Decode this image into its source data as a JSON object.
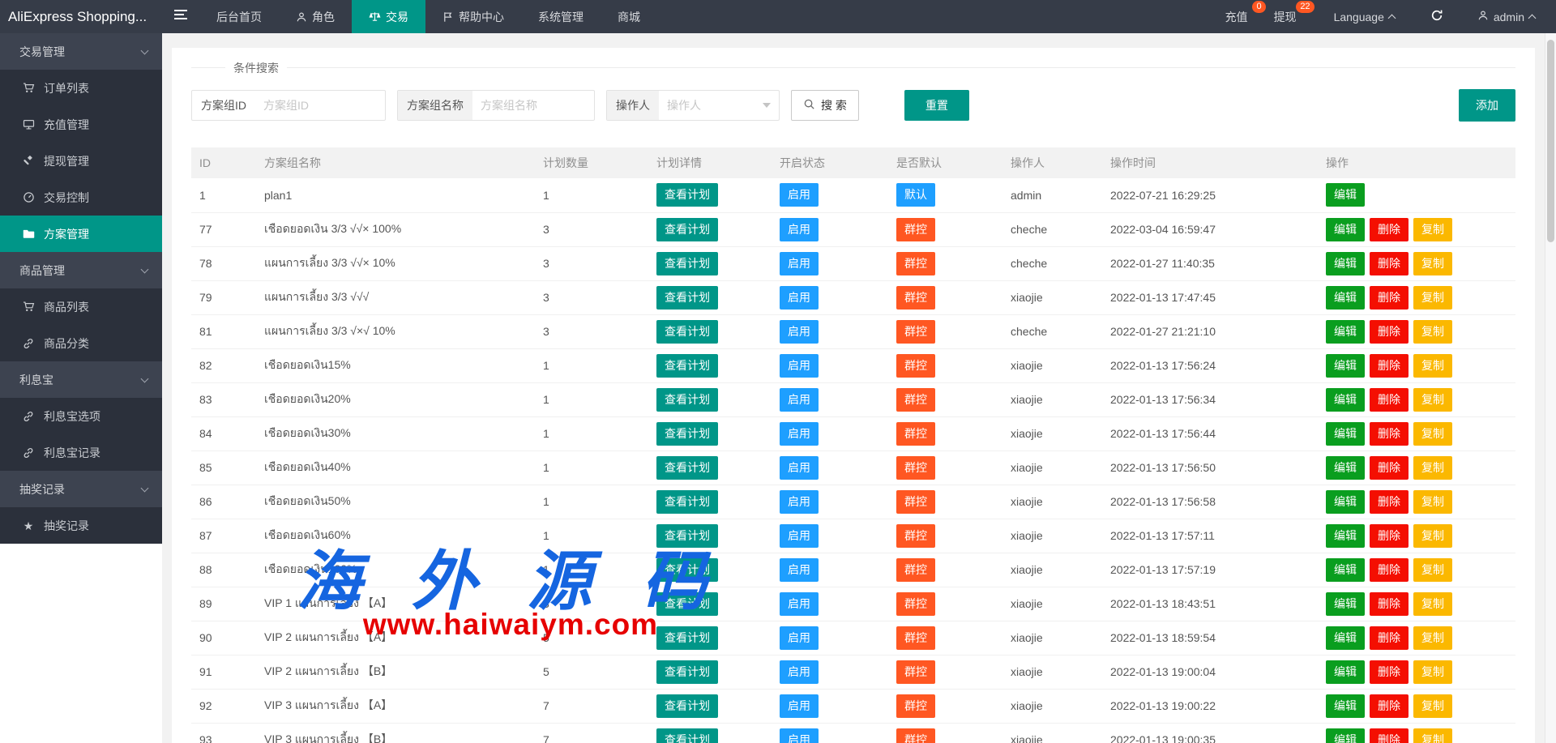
{
  "navbar": {
    "logo": "AliExpress Shopping...",
    "items": [
      {
        "key": "home",
        "label": "后台首页",
        "icon": null,
        "active": false
      },
      {
        "key": "role",
        "label": "角色",
        "icon": "person-icon",
        "active": false
      },
      {
        "key": "trade",
        "label": "交易",
        "icon": "scales-icon",
        "active": true
      },
      {
        "key": "help-center",
        "label": "帮助中心",
        "icon": "flag-icon",
        "active": false
      },
      {
        "key": "system-mgmt",
        "label": "系统管理",
        "icon": null,
        "active": false
      },
      {
        "key": "mall",
        "label": "商城",
        "icon": null,
        "active": false
      }
    ],
    "right": {
      "recharge": {
        "label": "充值",
        "badge": "0"
      },
      "withdraw": {
        "label": "提现",
        "badge": "22"
      },
      "language": {
        "label": "Language"
      },
      "user": {
        "label": "admin"
      }
    }
  },
  "sidebar": {
    "items": [
      {
        "type": "section",
        "key": "trade-mgmt",
        "label": "交易管理"
      },
      {
        "type": "item",
        "key": "order-list",
        "label": "订单列表",
        "icon": "cart-icon",
        "active": false
      },
      {
        "type": "item",
        "key": "recharge-mgmt",
        "label": "充值管理",
        "icon": "recharge-icon",
        "active": false
      },
      {
        "type": "item",
        "key": "withdraw-mgmt",
        "label": "提现管理",
        "icon": "gavel-icon",
        "active": false
      },
      {
        "type": "item",
        "key": "trade-control",
        "label": "交易控制",
        "icon": "gauge-icon",
        "active": false
      },
      {
        "type": "item",
        "key": "plan-mgmt",
        "label": "方案管理",
        "icon": "folder-icon",
        "active": true
      },
      {
        "type": "section",
        "key": "goods-mgmt",
        "label": "商品管理"
      },
      {
        "type": "item",
        "key": "goods-list",
        "label": "商品列表",
        "icon": "cart-icon",
        "active": false
      },
      {
        "type": "item",
        "key": "goods-category",
        "label": "商品分类",
        "icon": "link-icon",
        "active": false
      },
      {
        "type": "section",
        "key": "interest-bao",
        "label": "利息宝"
      },
      {
        "type": "item",
        "key": "interest-bao-options",
        "label": "利息宝选项",
        "icon": "link-icon",
        "active": false
      },
      {
        "type": "item",
        "key": "interest-bao-records",
        "label": "利息宝记录",
        "icon": "link-icon",
        "active": false
      },
      {
        "type": "section",
        "key": "lottery-records-group",
        "label": "抽奖记录"
      },
      {
        "type": "item",
        "key": "lottery-records",
        "label": "抽奖记录",
        "icon": "star-icon",
        "active": false
      }
    ]
  },
  "search_panel": {
    "legend": "条件搜索",
    "fields": [
      {
        "label": "方案组ID",
        "placeholder": "方案组ID"
      },
      {
        "label": "方案组名称",
        "placeholder": "方案组名称"
      },
      {
        "label": "操作人",
        "placeholder": "操作人"
      }
    ],
    "search_button": "搜 索",
    "reset_button": "重置",
    "add_button": "添加"
  },
  "table": {
    "columns": [
      "ID",
      "方案组名称",
      "计划数量",
      "计划详情",
      "开启状态",
      "是否默认",
      "操作人",
      "操作时间",
      "操作"
    ],
    "labels": {
      "view": "查看计划",
      "enable": "启用",
      "default": "默认",
      "group": "群控",
      "edit": "编辑",
      "delete": "删除",
      "copy": "复制"
    },
    "rows": [
      {
        "id": "1",
        "name": "plan1",
        "count": "1",
        "status": "enable",
        "default": "default",
        "operator": "admin",
        "time": "2022-07-21 16:29:25",
        "actions": [
          "edit"
        ]
      },
      {
        "id": "77",
        "name": "เชือดยอดเงิน 3/3 √√× 100%",
        "count": "3",
        "status": "enable",
        "default": "group",
        "operator": "cheche",
        "time": "2022-03-04 16:59:47",
        "actions": [
          "edit",
          "delete",
          "copy"
        ]
      },
      {
        "id": "78",
        "name": "แผนการเลี้ยง 3/3 √√× 10%",
        "count": "3",
        "status": "enable",
        "default": "group",
        "operator": "cheche",
        "time": "2022-01-27 11:40:35",
        "actions": [
          "edit",
          "delete",
          "copy"
        ]
      },
      {
        "id": "79",
        "name": "แผนการเลี้ยง 3/3 √√√",
        "count": "3",
        "status": "enable",
        "default": "group",
        "operator": "xiaojie",
        "time": "2022-01-13 17:47:45",
        "actions": [
          "edit",
          "delete",
          "copy"
        ]
      },
      {
        "id": "81",
        "name": "แผนการเลี้ยง 3/3 √×√ 10%",
        "count": "3",
        "status": "enable",
        "default": "group",
        "operator": "cheche",
        "time": "2022-01-27 21:21:10",
        "actions": [
          "edit",
          "delete",
          "copy"
        ]
      },
      {
        "id": "82",
        "name": "เชือดยอดเงิน15%",
        "count": "1",
        "status": "enable",
        "default": "group",
        "operator": "xiaojie",
        "time": "2022-01-13 17:56:24",
        "actions": [
          "edit",
          "delete",
          "copy"
        ]
      },
      {
        "id": "83",
        "name": "เชือดยอดเงิน20%",
        "count": "1",
        "status": "enable",
        "default": "group",
        "operator": "xiaojie",
        "time": "2022-01-13 17:56:34",
        "actions": [
          "edit",
          "delete",
          "copy"
        ]
      },
      {
        "id": "84",
        "name": "เชือดยอดเงิน30%",
        "count": "1",
        "status": "enable",
        "default": "group",
        "operator": "xiaojie",
        "time": "2022-01-13 17:56:44",
        "actions": [
          "edit",
          "delete",
          "copy"
        ]
      },
      {
        "id": "85",
        "name": "เชือดยอดเงิน40%",
        "count": "1",
        "status": "enable",
        "default": "group",
        "operator": "xiaojie",
        "time": "2022-01-13 17:56:50",
        "actions": [
          "edit",
          "delete",
          "copy"
        ]
      },
      {
        "id": "86",
        "name": "เชือดยอดเงิน50%",
        "count": "1",
        "status": "enable",
        "default": "group",
        "operator": "xiaojie",
        "time": "2022-01-13 17:56:58",
        "actions": [
          "edit",
          "delete",
          "copy"
        ]
      },
      {
        "id": "87",
        "name": "เชือดยอดเงิน60%",
        "count": "1",
        "status": "enable",
        "default": "group",
        "operator": "xiaojie",
        "time": "2022-01-13 17:57:11",
        "actions": [
          "edit",
          "delete",
          "copy"
        ]
      },
      {
        "id": "88",
        "name": "เชือดยอดเงิน100%",
        "count": "1",
        "status": "enable",
        "default": "group",
        "operator": "xiaojie",
        "time": "2022-01-13 17:57:19",
        "actions": [
          "edit",
          "delete",
          "copy"
        ]
      },
      {
        "id": "89",
        "name": "VIP 1 แผนการเลี้ยง 【A】",
        "count": "3",
        "status": "enable",
        "default": "group",
        "operator": "xiaojie",
        "time": "2022-01-13 18:43:51",
        "actions": [
          "edit",
          "delete",
          "copy"
        ]
      },
      {
        "id": "90",
        "name": "VIP 2 แผนการเลี้ยง 【A】",
        "count": "5",
        "status": "enable",
        "default": "group",
        "operator": "xiaojie",
        "time": "2022-01-13 18:59:54",
        "actions": [
          "edit",
          "delete",
          "copy"
        ]
      },
      {
        "id": "91",
        "name": "VIP 2 แผนการเลี้ยง 【B】",
        "count": "5",
        "status": "enable",
        "default": "group",
        "operator": "xiaojie",
        "time": "2022-01-13 19:00:04",
        "actions": [
          "edit",
          "delete",
          "copy"
        ]
      },
      {
        "id": "92",
        "name": "VIP 3 แผนการเลี้ยง 【A】",
        "count": "7",
        "status": "enable",
        "default": "group",
        "operator": "xiaojie",
        "time": "2022-01-13 19:00:22",
        "actions": [
          "edit",
          "delete",
          "copy"
        ]
      },
      {
        "id": "93",
        "name": "VIP 3 แผนการเลี้ยง 【B】",
        "count": "7",
        "status": "enable",
        "default": "group",
        "operator": "xiaojie",
        "time": "2022-01-13 19:00:35",
        "actions": [
          "edit",
          "delete",
          "copy"
        ]
      }
    ]
  },
  "watermark": {
    "line1": "海外源码",
    "line2": "www.haiwaiym.com"
  },
  "colors": {
    "accent_teal": "#009688",
    "status_blue": "#1e9fff",
    "danger_orange": "#ff5722",
    "edit_green": "#0a9e1f",
    "delete_red": "#f40f02",
    "copy_amber": "#fbb800",
    "badge_red": "#ff5722",
    "watermark_blue": "#1565e0",
    "watermark_red": "#e60000"
  }
}
